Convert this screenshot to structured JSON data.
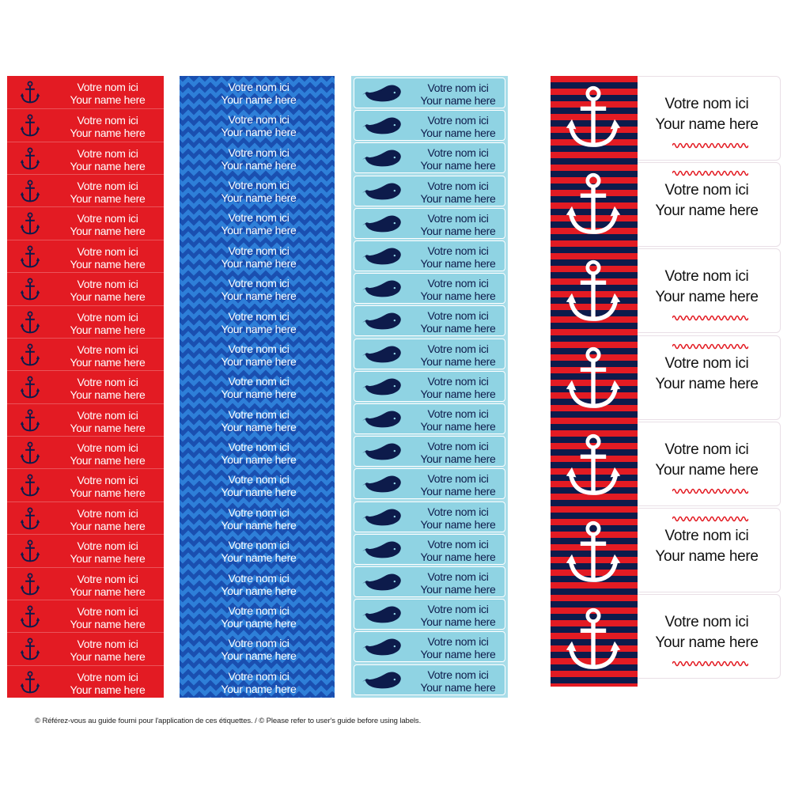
{
  "colors": {
    "red": "#e31b23",
    "navy": "#0d1b4b",
    "chevron_dark": "#1a4fb0",
    "chevron_light": "#2e7fd8",
    "light_blue": "#8fd3e3",
    "white": "#ffffff"
  },
  "icons": {
    "column_red": "anchor-icon",
    "column_whale": "whale-icon",
    "column_stripes": "anchor-icon"
  },
  "labels": {
    "line1": "Votre nom ici",
    "line2": "Your name here"
  },
  "footer": {
    "text": "© Référez-vous au guide fourni pour l'application de ces étiquettes. / © Please refer to user's guide before using labels."
  }
}
